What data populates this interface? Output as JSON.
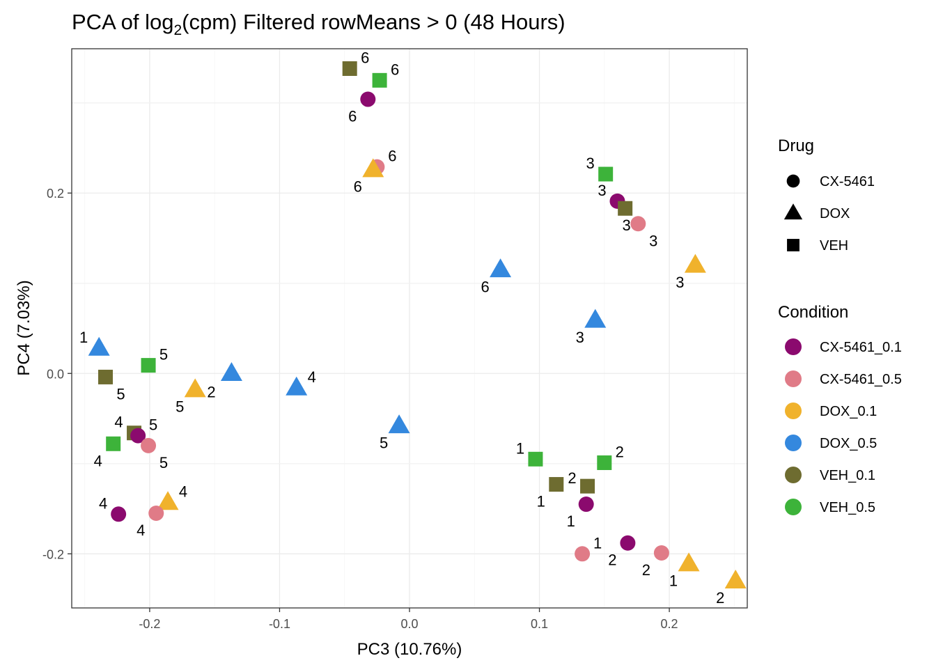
{
  "chart_data": {
    "type": "scatter",
    "title": {
      "prefix": "PCA of log",
      "sub": "2",
      "suffix": "(cpm) Filtered rowMeans > 0 (48 Hours)"
    },
    "xlabel": "PC3 (10.76%)",
    "ylabel": "PC4 (7.03%)",
    "xlim": [
      -0.26,
      0.26
    ],
    "ylim": [
      -0.26,
      0.36
    ],
    "x_ticks": [
      -0.2,
      -0.1,
      0.0,
      0.1,
      0.2
    ],
    "x_tick_labels": [
      "-0.2",
      "-0.1",
      "0.0",
      "0.1",
      "0.2"
    ],
    "y_ticks": [
      -0.2,
      0.0,
      0.2
    ],
    "y_tick_labels": [
      "-0.2",
      "0.0",
      "0.2"
    ],
    "grid": true,
    "legends": {
      "drug": {
        "title": "Drug",
        "items": [
          {
            "label": "CX-5461",
            "shape": "circle"
          },
          {
            "label": "DOX",
            "shape": "triangle"
          },
          {
            "label": "VEH",
            "shape": "square"
          }
        ]
      },
      "condition": {
        "title": "Condition",
        "items": [
          {
            "label": "CX-5461_0.1",
            "color": "#8B0A6E"
          },
          {
            "label": "CX-5461_0.5",
            "color": "#E07B87"
          },
          {
            "label": "DOX_0.1",
            "color": "#F0B22C"
          },
          {
            "label": "DOX_0.5",
            "color": "#3488DE"
          },
          {
            "label": "VEH_0.1",
            "color": "#6E6C30"
          },
          {
            "label": "VEH_0.5",
            "color": "#3DB33A"
          }
        ]
      }
    },
    "points": [
      {
        "x": -0.046,
        "y": 0.338,
        "shape": "square",
        "condition": "VEH_0.1",
        "label": "6",
        "lpos": "ne"
      },
      {
        "x": -0.023,
        "y": 0.325,
        "shape": "square",
        "condition": "VEH_0.5",
        "label": "6",
        "lpos": "ne"
      },
      {
        "x": -0.032,
        "y": 0.304,
        "shape": "circle",
        "condition": "CX-5461_0.1",
        "label": "6",
        "lpos": "sw"
      },
      {
        "x": -0.025,
        "y": 0.229,
        "shape": "circle",
        "condition": "CX-5461_0.5",
        "label": "6",
        "lpos": "ne"
      },
      {
        "x": -0.028,
        "y": 0.226,
        "shape": "triangle",
        "condition": "DOX_0.1",
        "label": "6",
        "lpos": "sw"
      },
      {
        "x": 0.151,
        "y": 0.221,
        "shape": "square",
        "condition": "VEH_0.5",
        "label": "3",
        "lpos": "nw"
      },
      {
        "x": 0.16,
        "y": 0.191,
        "shape": "circle",
        "condition": "CX-5461_0.1",
        "label": "3",
        "lpos": "nw"
      },
      {
        "x": 0.166,
        "y": 0.183,
        "shape": "square",
        "condition": "VEH_0.1",
        "label": "3",
        "lpos": "s"
      },
      {
        "x": 0.176,
        "y": 0.166,
        "shape": "circle",
        "condition": "CX-5461_0.5",
        "label": "3",
        "lpos": "se"
      },
      {
        "x": 0.22,
        "y": 0.12,
        "shape": "triangle",
        "condition": "DOX_0.1",
        "label": "3",
        "lpos": "sw"
      },
      {
        "x": 0.07,
        "y": 0.115,
        "shape": "triangle",
        "condition": "DOX_0.5",
        "label": "6",
        "lpos": "sw"
      },
      {
        "x": 0.143,
        "y": 0.059,
        "shape": "triangle",
        "condition": "DOX_0.5",
        "label": "3",
        "lpos": "sw"
      },
      {
        "x": -0.239,
        "y": 0.028,
        "shape": "triangle",
        "condition": "DOX_0.5",
        "label": "1",
        "lpos": "nw"
      },
      {
        "x": -0.201,
        "y": 0.009,
        "shape": "square",
        "condition": "VEH_0.5",
        "label": "5",
        "lpos": "ne"
      },
      {
        "x": -0.234,
        "y": -0.004,
        "shape": "square",
        "condition": "VEH_0.1",
        "label": "5",
        "lpos": "se"
      },
      {
        "x": -0.137,
        "y": 0.0,
        "shape": "triangle",
        "condition": "DOX_0.5",
        "label": "2",
        "lpos": "far-sw"
      },
      {
        "x": -0.165,
        "y": -0.018,
        "shape": "triangle",
        "condition": "DOX_0.1",
        "label": "5",
        "lpos": "sw"
      },
      {
        "x": -0.087,
        "y": -0.016,
        "shape": "triangle",
        "condition": "DOX_0.5",
        "label": "4",
        "lpos": "ne"
      },
      {
        "x": -0.008,
        "y": -0.058,
        "shape": "triangle",
        "condition": "DOX_0.5",
        "label": "5",
        "lpos": "sw"
      },
      {
        "x": -0.212,
        "y": -0.066,
        "shape": "square",
        "condition": "VEH_0.1",
        "label": "4",
        "lpos": "nw"
      },
      {
        "x": -0.209,
        "y": -0.069,
        "shape": "circle",
        "condition": "CX-5461_0.1",
        "label": "5",
        "lpos": "ne"
      },
      {
        "x": -0.228,
        "y": -0.078,
        "shape": "square",
        "condition": "VEH_0.5",
        "label": "4",
        "lpos": "sw"
      },
      {
        "x": -0.201,
        "y": -0.08,
        "shape": "circle",
        "condition": "CX-5461_0.5",
        "label": "5",
        "lpos": "se"
      },
      {
        "x": 0.097,
        "y": -0.095,
        "shape": "square",
        "condition": "VEH_0.5",
        "label": "1",
        "lpos": "nw"
      },
      {
        "x": 0.15,
        "y": -0.099,
        "shape": "square",
        "condition": "VEH_0.5",
        "label": "2",
        "lpos": "ne"
      },
      {
        "x": 0.113,
        "y": -0.123,
        "shape": "square",
        "condition": "VEH_0.1",
        "label": "1",
        "lpos": "sw"
      },
      {
        "x": 0.137,
        "y": -0.125,
        "shape": "square",
        "condition": "VEH_0.1",
        "label": "2",
        "lpos": "far-nw"
      },
      {
        "x": 0.136,
        "y": -0.145,
        "shape": "circle",
        "condition": "CX-5461_0.1",
        "label": "1",
        "lpos": "sw"
      },
      {
        "x": -0.186,
        "y": -0.143,
        "shape": "triangle",
        "condition": "DOX_0.1",
        "label": "4",
        "lpos": "ne"
      },
      {
        "x": -0.224,
        "y": -0.156,
        "shape": "circle",
        "condition": "CX-5461_0.1",
        "label": "4",
        "lpos": "nw"
      },
      {
        "x": -0.195,
        "y": -0.155,
        "shape": "circle",
        "condition": "CX-5461_0.5",
        "label": "4",
        "lpos": "sw"
      },
      {
        "x": 0.168,
        "y": -0.188,
        "shape": "circle",
        "condition": "CX-5461_0.1",
        "label": "2",
        "lpos": "sw"
      },
      {
        "x": 0.133,
        "y": -0.2,
        "shape": "circle",
        "condition": "CX-5461_0.5",
        "label": "1",
        "lpos": "ne"
      },
      {
        "x": 0.194,
        "y": -0.199,
        "shape": "circle",
        "condition": "CX-5461_0.5",
        "label": "2",
        "lpos": "sw"
      },
      {
        "x": 0.215,
        "y": -0.211,
        "shape": "triangle",
        "condition": "DOX_0.1",
        "label": "1",
        "lpos": "sw"
      },
      {
        "x": 0.251,
        "y": -0.23,
        "shape": "triangle",
        "condition": "DOX_0.1",
        "label": "2",
        "lpos": "sw"
      }
    ]
  }
}
